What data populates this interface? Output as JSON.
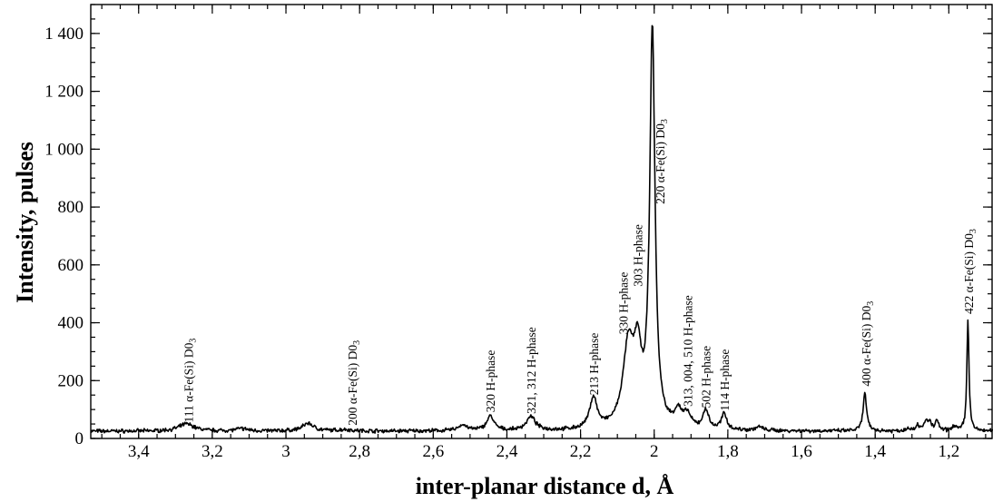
{
  "chart_data": {
    "type": "line",
    "xlabel": "inter-planar distance d, Å",
    "ylabel": "Intensity, pulses",
    "xlim": [
      3.53,
      1.08
    ],
    "ylim": [
      0,
      1500
    ],
    "x_reversed": true,
    "x_ticks": [
      {
        "value": 3.4,
        "label": "3,4"
      },
      {
        "value": 3.2,
        "label": "3,2"
      },
      {
        "value": 3.0,
        "label": "3"
      },
      {
        "value": 2.8,
        "label": "2,8"
      },
      {
        "value": 2.6,
        "label": "2,6"
      },
      {
        "value": 2.4,
        "label": "2,4"
      },
      {
        "value": 2.2,
        "label": "2,2"
      },
      {
        "value": 2.0,
        "label": "2"
      },
      {
        "value": 1.8,
        "label": "1,8"
      },
      {
        "value": 1.6,
        "label": "1,6"
      },
      {
        "value": 1.4,
        "label": "1,4"
      },
      {
        "value": 1.2,
        "label": "1,2"
      }
    ],
    "y_ticks": [
      {
        "value": 0,
        "label": "0"
      },
      {
        "value": 200,
        "label": "200"
      },
      {
        "value": 400,
        "label": "400"
      },
      {
        "value": 600,
        "label": "600"
      },
      {
        "value": 800,
        "label": "800"
      },
      {
        "value": 1000,
        "label": "1 000"
      },
      {
        "value": 1200,
        "label": "1 200"
      },
      {
        "value": 1400,
        "label": "1 400"
      }
    ],
    "baseline": 25,
    "peaks": [
      {
        "d": 3.27,
        "height": 25,
        "width": 0.025
      },
      {
        "d": 3.12,
        "height": 8,
        "width": 0.02
      },
      {
        "d": 2.94,
        "height": 27,
        "width": 0.018
      },
      {
        "d": 2.84,
        "height": 5,
        "width": 0.02
      },
      {
        "d": 2.52,
        "height": 20,
        "width": 0.015
      },
      {
        "d": 2.445,
        "height": 50,
        "width": 0.012
      },
      {
        "d": 2.335,
        "height": 47,
        "width": 0.015
      },
      {
        "d": 2.165,
        "height": 108,
        "width": 0.012
      },
      {
        "d": 2.07,
        "height": 280,
        "width": 0.018
      },
      {
        "d": 2.045,
        "height": 220,
        "width": 0.012
      },
      {
        "d": 2.005,
        "height": 1375,
        "width": 0.0085
      },
      {
        "d": 1.935,
        "height": 55,
        "width": 0.012
      },
      {
        "d": 1.91,
        "height": 45,
        "width": 0.012
      },
      {
        "d": 1.86,
        "height": 67,
        "width": 0.009
      },
      {
        "d": 1.81,
        "height": 55,
        "width": 0.009
      },
      {
        "d": 1.715,
        "height": 12,
        "width": 0.012
      },
      {
        "d": 1.428,
        "height": 132,
        "width": 0.0055
      },
      {
        "d": 1.31,
        "height": 12,
        "width": 0.006
      },
      {
        "d": 1.285,
        "height": 22,
        "width": 0.005
      },
      {
        "d": 1.262,
        "height": 32,
        "width": 0.006
      },
      {
        "d": 1.252,
        "height": 28,
        "width": 0.005
      },
      {
        "d": 1.232,
        "height": 38,
        "width": 0.005
      },
      {
        "d": 1.185,
        "height": 18,
        "width": 0.006
      },
      {
        "d": 1.148,
        "height": 385,
        "width": 0.0035
      }
    ],
    "annotations": [
      {
        "text": "111 α-Fe(Si) D0",
        "sub": "3",
        "d": 3.265,
        "y": 55
      },
      {
        "text": "200 α-Fe(Si) D0",
        "sub": "3",
        "d": 2.82,
        "y": 45
      },
      {
        "text": "320 H-phase",
        "d": 2.445,
        "y": 90
      },
      {
        "text": "321, 312 H-phase",
        "d": 2.335,
        "y": 85
      },
      {
        "text": "213 H-phase",
        "d": 2.165,
        "y": 150
      },
      {
        "text": "330 H-phase",
        "d": 2.085,
        "y": 360
      },
      {
        "text": "303 H-phase",
        "d": 2.045,
        "y": 525
      },
      {
        "text": "220 α-Fe(Si) D0",
        "sub": "3",
        "d": 1.985,
        "y": 810
      },
      {
        "text": "313, 004, 510 H-phase",
        "d": 1.91,
        "y": 110
      },
      {
        "text": "502 H-phase",
        "d": 1.86,
        "y": 105
      },
      {
        "text": "114 H-phase",
        "d": 1.81,
        "y": 95
      },
      {
        "text": "400 α-Fe(Si) D0",
        "sub": "3",
        "d": 1.425,
        "y": 180
      },
      {
        "text": "422 α-Fe(Si) D0",
        "sub": "3",
        "d": 1.147,
        "y": 430
      }
    ]
  }
}
